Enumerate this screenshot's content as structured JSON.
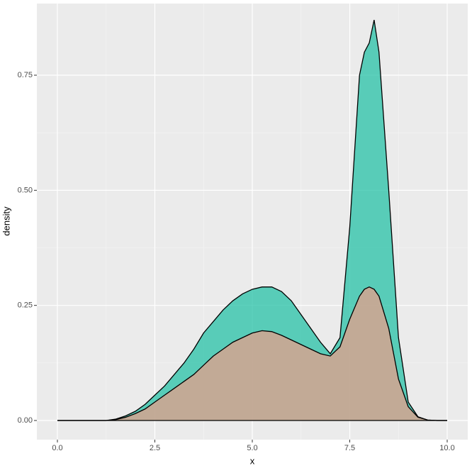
{
  "chart_data": {
    "type": "density",
    "x_label": "x",
    "y_label": "density",
    "x": [
      0,
      0.25,
      0.5,
      0.75,
      1,
      1.25,
      1.5,
      1.75,
      2,
      2.25,
      2.5,
      2.75,
      3,
      3.25,
      3.5,
      3.75,
      4,
      4.25,
      4.5,
      4.75,
      5,
      5.25,
      5.5,
      5.75,
      6,
      6.25,
      6.5,
      6.75,
      7,
      7.25,
      7.5,
      7.75,
      7.875,
      8,
      8.125,
      8.25,
      8.5,
      8.75,
      9,
      9.25,
      9.5,
      9.75,
      10
    ],
    "series": [
      {
        "color": "#1fbfa4",
        "values": [
          0,
          0,
          0,
          0,
          0,
          0,
          0.003,
          0.01,
          0.02,
          0.035,
          0.055,
          0.075,
          0.1,
          0.125,
          0.155,
          0.19,
          0.215,
          0.24,
          0.26,
          0.275,
          0.285,
          0.29,
          0.29,
          0.28,
          0.26,
          0.23,
          0.2,
          0.17,
          0.145,
          0.18,
          0.42,
          0.75,
          0.8,
          0.82,
          0.87,
          0.8,
          0.5,
          0.18,
          0.04,
          0.008,
          0.001,
          0,
          0
        ]
      },
      {
        "color": "#f59a86",
        "values": [
          0,
          0,
          0,
          0,
          0,
          0,
          0.002,
          0.007,
          0.015,
          0.025,
          0.04,
          0.055,
          0.07,
          0.085,
          0.1,
          0.12,
          0.14,
          0.155,
          0.17,
          0.18,
          0.19,
          0.195,
          0.193,
          0.185,
          0.175,
          0.165,
          0.155,
          0.145,
          0.14,
          0.16,
          0.22,
          0.27,
          0.285,
          0.29,
          0.285,
          0.27,
          0.2,
          0.09,
          0.03,
          0.007,
          0.001,
          0,
          0
        ]
      }
    ],
    "xlim": [
      -0.527,
      10.527
    ],
    "ylim": [
      -0.0416,
      0.9056
    ],
    "xticks": [
      {
        "value": 0,
        "label": "0.0"
      },
      {
        "value": 2.5,
        "label": "2.5"
      },
      {
        "value": 5,
        "label": "5.0"
      },
      {
        "value": 7.5,
        "label": "7.5"
      },
      {
        "value": 10,
        "label": "10.0"
      }
    ],
    "yticks": [
      {
        "value": 0,
        "label": "0.00"
      },
      {
        "value": 0.25,
        "label": "0.25"
      },
      {
        "value": 0.5,
        "label": "0.50"
      },
      {
        "value": 0.75,
        "label": "0.75"
      }
    ],
    "x_minor_ticks": [
      1.25,
      3.75,
      6.25,
      8.75
    ],
    "y_minor_ticks": [
      0.125,
      0.375,
      0.625
    ],
    "grid": true
  }
}
